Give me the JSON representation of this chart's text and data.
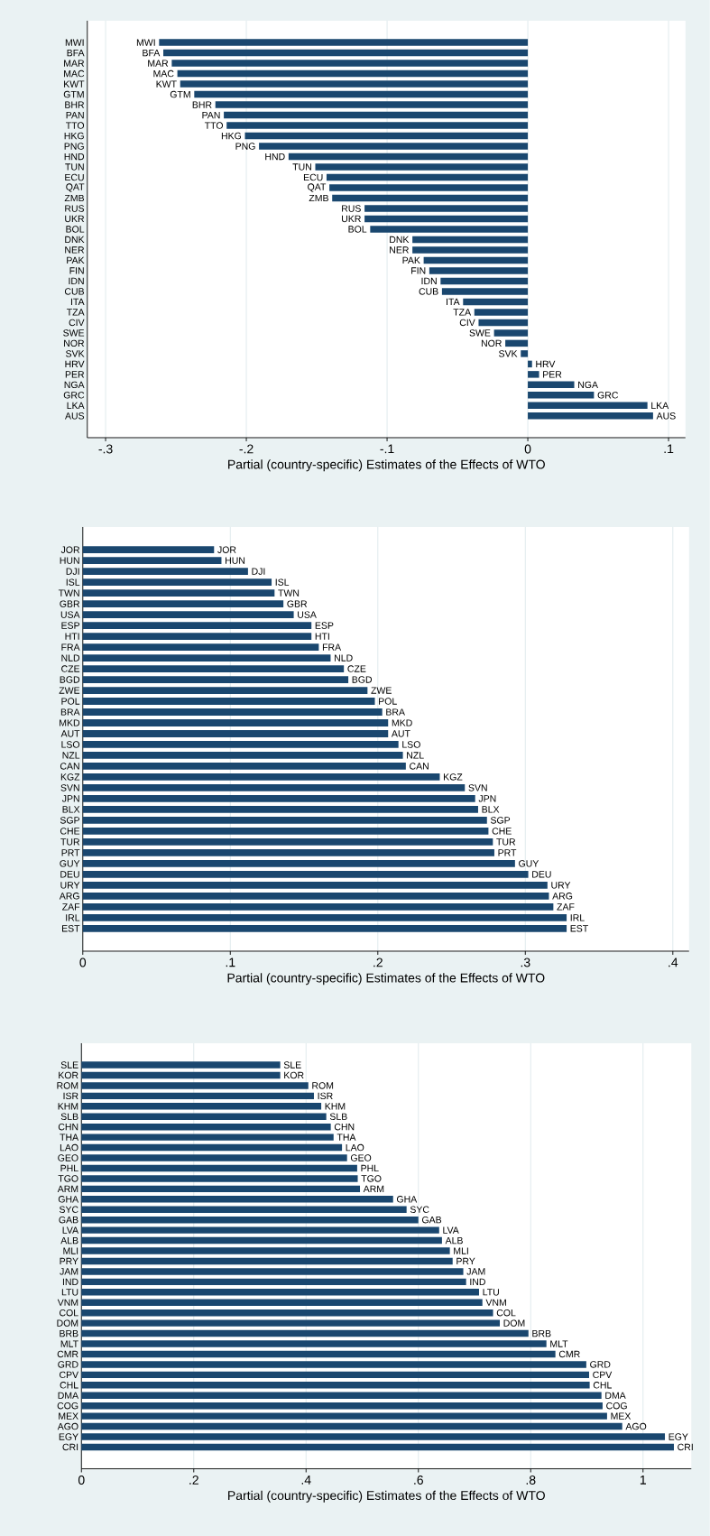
{
  "chart_data": [
    {
      "type": "bar",
      "orientation": "horizontal",
      "xlabel": "Partial (country-specific) Estimates of the Effects of WTO",
      "color": "#1a476f",
      "grid": "x",
      "categories": [
        "MWI",
        "BFA",
        "MAR",
        "MAC",
        "KWT",
        "GTM",
        "BHR",
        "PAN",
        "TTO",
        "HKG",
        "PNG",
        "HND",
        "TUN",
        "ECU",
        "QAT",
        "ZMB",
        "RUS",
        "UKR",
        "BOL",
        "DNK",
        "NER",
        "PAK",
        "FIN",
        "IDN",
        "CUB",
        "ITA",
        "TZA",
        "CIV",
        "SWE",
        "NOR",
        "SVK",
        "HRV",
        "PER",
        "NGA",
        "GRC",
        "LKA",
        "AUS"
      ],
      "values": [
        -0.262,
        -0.259,
        -0.253,
        -0.249,
        -0.247,
        -0.237,
        -0.222,
        -0.216,
        -0.214,
        -0.201,
        -0.191,
        -0.17,
        -0.151,
        -0.143,
        -0.141,
        -0.139,
        -0.116,
        -0.116,
        -0.112,
        -0.082,
        -0.082,
        -0.074,
        -0.07,
        -0.062,
        -0.061,
        -0.046,
        -0.038,
        -0.035,
        -0.024,
        -0.016,
        -0.005,
        0.003,
        0.008,
        0.033,
        0.047,
        0.085,
        0.089
      ],
      "value_labels": [
        "MWI",
        "BFA",
        "MAR",
        "MAC",
        "KWT",
        "GTM",
        "BHR",
        "PAN",
        "TTO",
        "HKG",
        "PNG",
        "HND",
        "TUN",
        "ECU",
        "QAT",
        "ZMB",
        "RUS",
        "UKR",
        "BOL",
        "DNK",
        "NER",
        "PAK",
        "FIN",
        "IDN",
        "CUB",
        "ITA",
        "TZA",
        "CIV",
        "SWE",
        "NOR",
        "SVK",
        "HRV",
        "PER",
        "NGA",
        "GRC",
        "LKA",
        "AUS"
      ],
      "xlim": [
        -0.313,
        0.112
      ],
      "xticks": [
        {
          "value": -0.3,
          "label": "-.3"
        },
        {
          "value": -0.2,
          "label": "-.2"
        },
        {
          "value": -0.1,
          "label": "-.1"
        },
        0,
        {
          "value": 0.1,
          "label": ".1"
        }
      ]
    },
    {
      "type": "bar",
      "orientation": "horizontal",
      "xlabel": "Partial (country-specific) Estimates of the Effects of WTO",
      "color": "#1a476f",
      "grid": "x",
      "categories": [
        "JOR",
        "HUN",
        "DJI",
        "ISL",
        "TWN",
        "GBR",
        "USA",
        "ESP",
        "HTI",
        "FRA",
        "NLD",
        "CZE",
        "BGD",
        "ZWE",
        "POL",
        "BRA",
        "MKD",
        "AUT",
        "LSO",
        "NZL",
        "CAN",
        "KGZ",
        "SVN",
        "JPN",
        "BLX",
        "SGP",
        "CHE",
        "TUR",
        "PRT",
        "GUY",
        "DEU",
        "URY",
        "ARG",
        "ZAF",
        "IRL",
        "EST"
      ],
      "values": [
        0.089,
        0.094,
        0.112,
        0.128,
        0.13,
        0.136,
        0.143,
        0.155,
        0.155,
        0.16,
        0.168,
        0.177,
        0.18,
        0.193,
        0.198,
        0.203,
        0.207,
        0.207,
        0.214,
        0.217,
        0.219,
        0.242,
        0.259,
        0.266,
        0.268,
        0.274,
        0.275,
        0.278,
        0.279,
        0.293,
        0.302,
        0.315,
        0.316,
        0.319,
        0.328,
        0.328
      ],
      "value_labels": [
        "JOR",
        "HUN",
        "DJI",
        "ISL",
        "TWN",
        "GBR",
        "USA",
        "ESP",
        "HTI",
        "FRA",
        "NLD",
        "CZE",
        "BGD",
        "ZWE",
        "POL",
        "BRA",
        "MKD",
        "AUT",
        "LSO",
        "NZL",
        "CAN",
        "KGZ",
        "SVN",
        "JPN",
        "BLX",
        "SGP",
        "CHE",
        "TUR",
        "PRT",
        "GUY",
        "DEU",
        "URY",
        "ARG",
        "ZAF",
        "IRL",
        "EST"
      ],
      "xlim": [
        0,
        0.411
      ],
      "xticks": [
        0,
        {
          "value": 0.1,
          "label": ".1"
        },
        {
          "value": 0.2,
          "label": ".2"
        },
        {
          "value": 0.3,
          "label": ".3"
        },
        {
          "value": 0.4,
          "label": ".4"
        }
      ]
    },
    {
      "type": "bar",
      "orientation": "horizontal",
      "xlabel": "Partial (country-specific) Estimates of the Effects of WTO",
      "color": "#1a476f",
      "grid": "x",
      "categories": [
        "SLE",
        "KOR",
        "ROM",
        "ISR",
        "KHM",
        "SLB",
        "CHN",
        "THA",
        "LAO",
        "GEO",
        "PHL",
        "TGO",
        "ARM",
        "GHA",
        "SYC",
        "GAB",
        "LVA",
        "ALB",
        "MLI",
        "PRY",
        "JAM",
        "IND",
        "LTU",
        "VNM",
        "COL",
        "DOM",
        "BRB",
        "MLT",
        "CMR",
        "GRD",
        "CPV",
        "CHL",
        "DMA",
        "COG",
        "MEX",
        "AGO",
        "EGY",
        "CRI"
      ],
      "values": [
        0.354,
        0.354,
        0.404,
        0.414,
        0.427,
        0.436,
        0.444,
        0.449,
        0.464,
        0.473,
        0.491,
        0.492,
        0.496,
        0.555,
        0.579,
        0.6,
        0.637,
        0.642,
        0.656,
        0.661,
        0.68,
        0.685,
        0.708,
        0.714,
        0.733,
        0.745,
        0.796,
        0.828,
        0.844,
        0.899,
        0.904,
        0.905,
        0.926,
        0.928,
        0.936,
        0.963,
        1.039,
        1.055
      ],
      "value_labels": [
        "SLE",
        "KOR",
        "ROM",
        "ISR",
        "KHM",
        "SLB",
        "CHN",
        "THA",
        "LAO",
        "GEO",
        "PHL",
        "TGO",
        "ARM",
        "GHA",
        "SYC",
        "GAB",
        "LVA",
        "ALB",
        "MLI",
        "PRY",
        "JAM",
        "IND",
        "LTU",
        "VNM",
        "COL",
        "DOM",
        "BRB",
        "MLT",
        "CMR",
        "GRD",
        "CPV",
        "CHL",
        "DMA",
        "COG",
        "MEX",
        "AGO",
        "EGY",
        "CRI"
      ],
      "xlim": [
        0,
        1.086
      ],
      "xticks": [
        0,
        {
          "value": 0.2,
          "label": ".2"
        },
        {
          "value": 0.4,
          "label": ".4"
        },
        {
          "value": 0.6,
          "label": ".6"
        },
        {
          "value": 0.8,
          "label": ".8"
        },
        1
      ]
    }
  ]
}
